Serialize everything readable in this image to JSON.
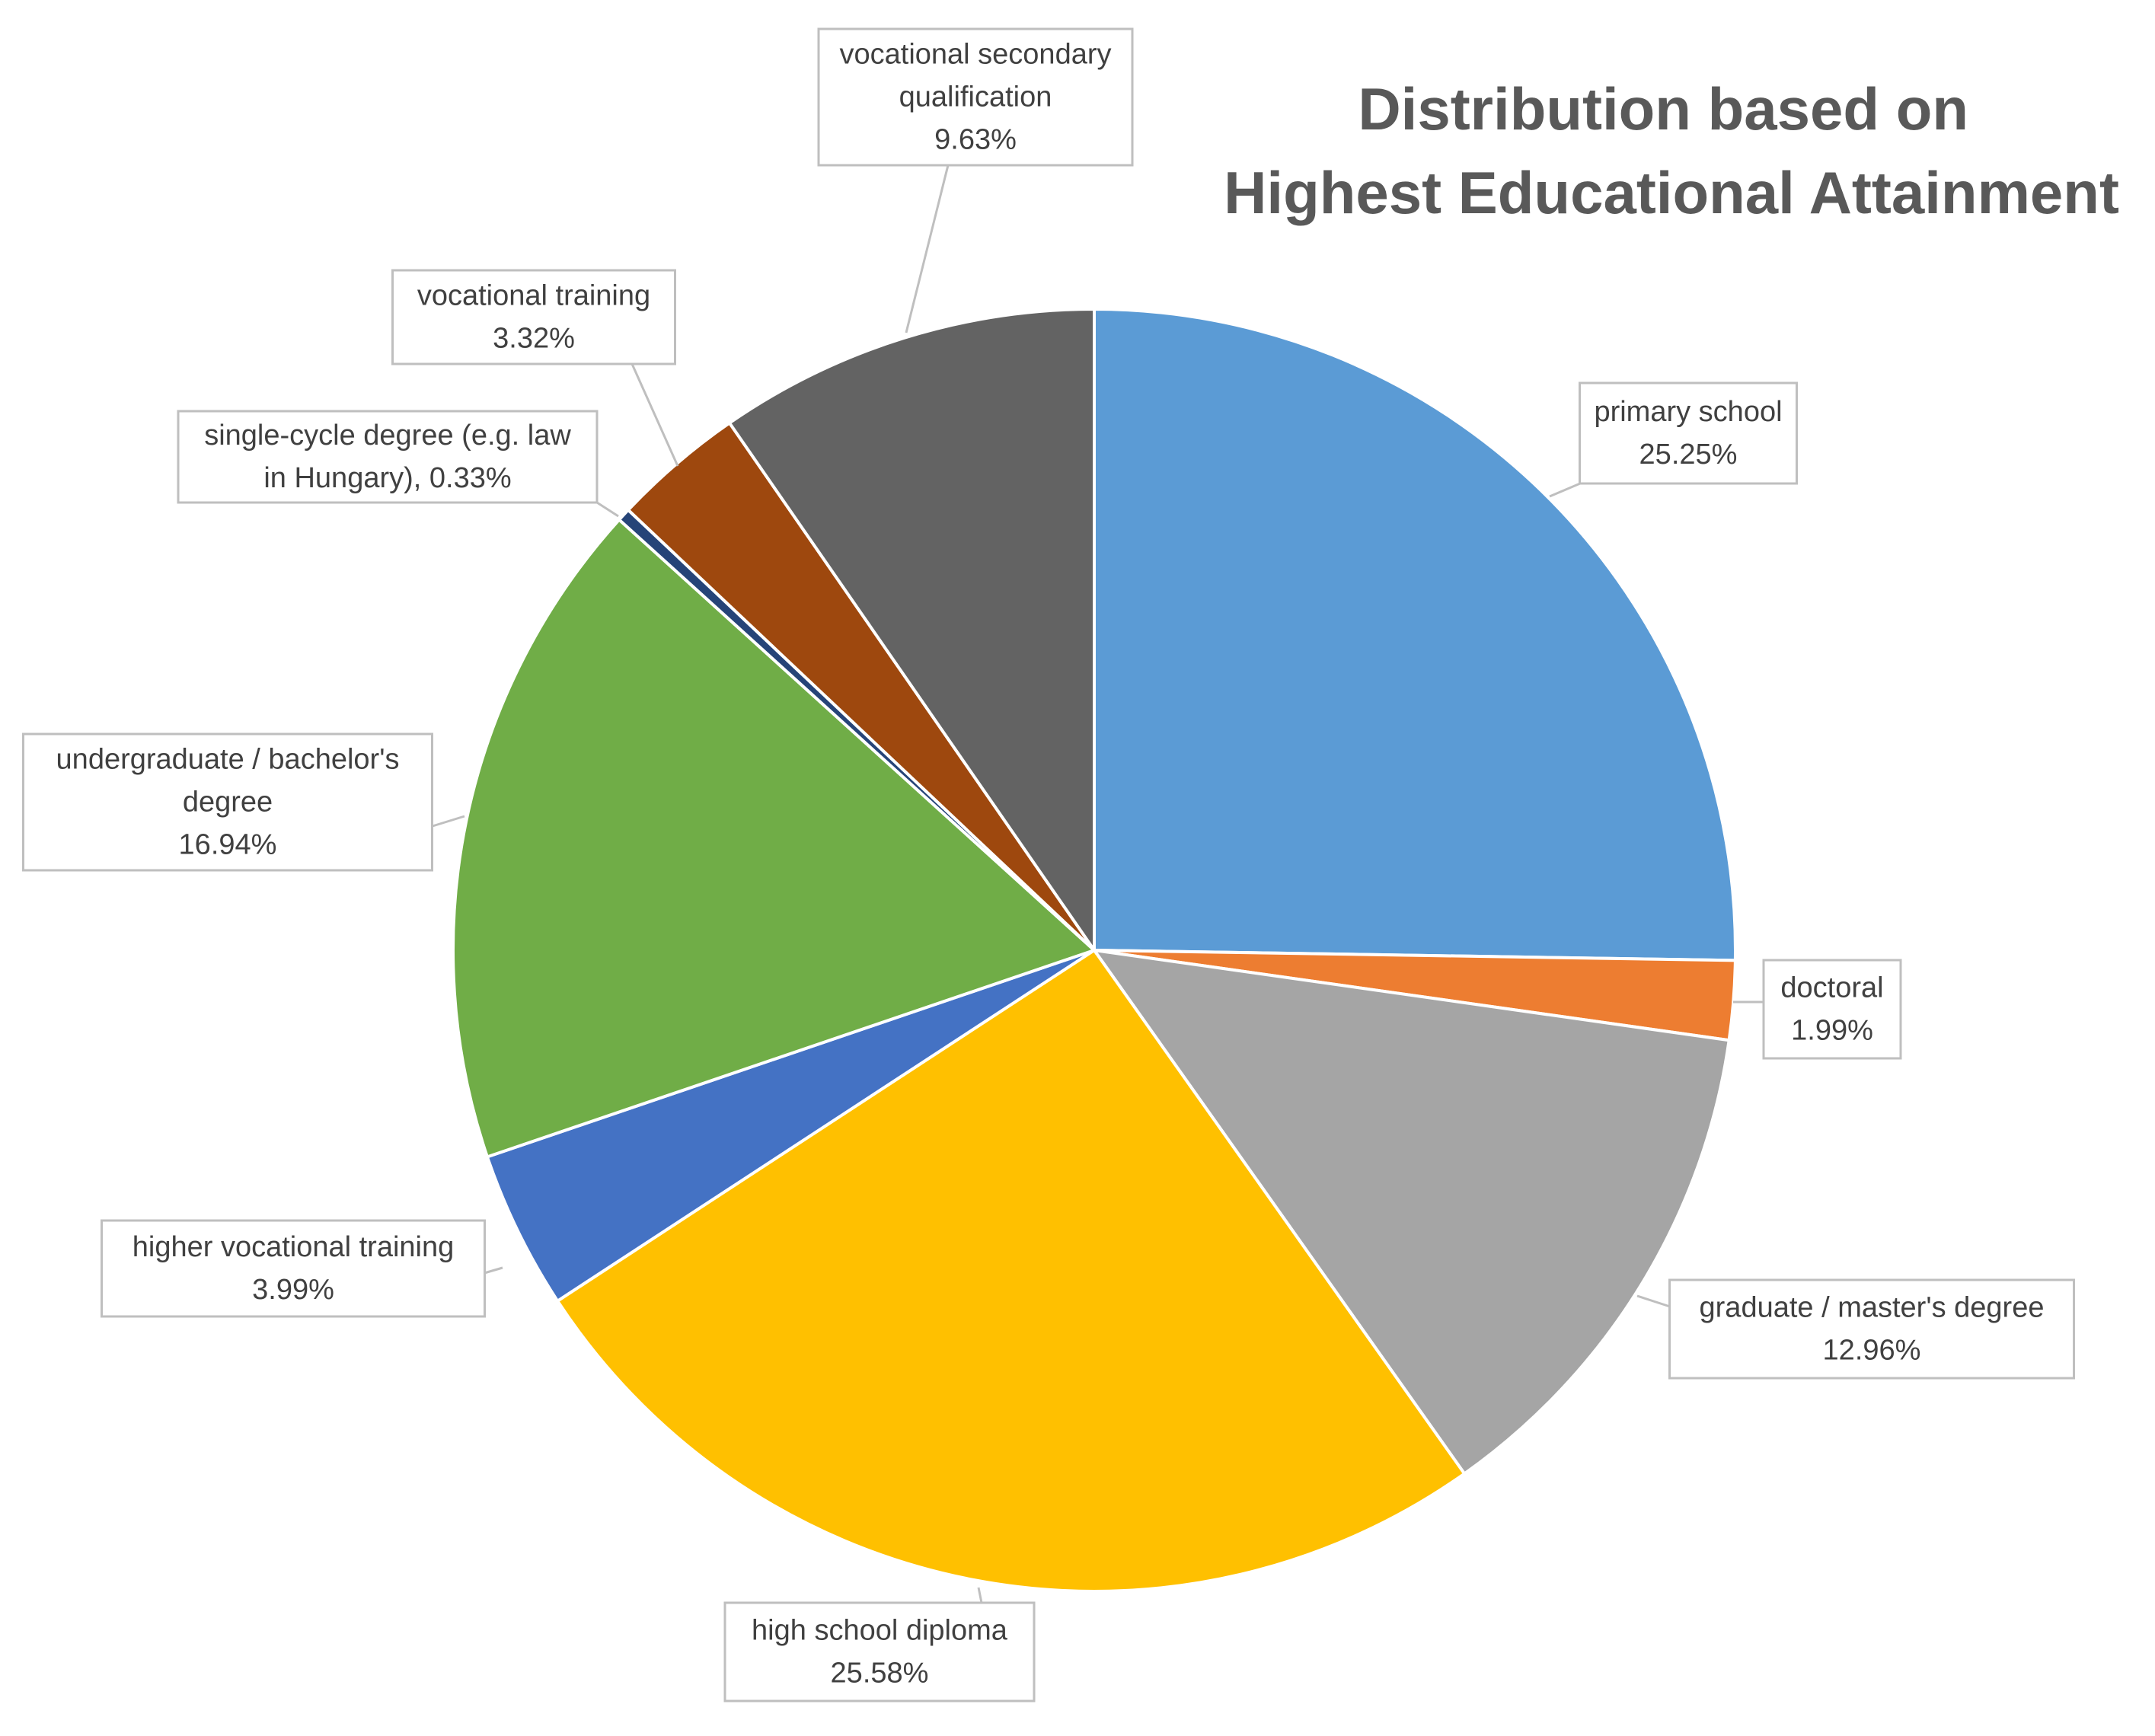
{
  "chart_data": {
    "type": "pie",
    "title": "Distribution based on Highest Educational Attainment",
    "title_lines": [
      "Distribution based on",
      "Highest Educational Attainment"
    ],
    "start_angle_deg": 0,
    "direction": "clockwise",
    "slices": [
      {
        "label": "primary school",
        "label_lines": [
          "primary school",
          "25.25%"
        ],
        "value": 25.25,
        "display": "25.25%",
        "color": "#5B9BD5"
      },
      {
        "label": "doctoral",
        "label_lines": [
          "doctoral",
          "1.99%"
        ],
        "value": 1.99,
        "display": "1.99%",
        "color": "#ED7D31"
      },
      {
        "label": "graduate / master's degree",
        "label_lines": [
          "graduate / master's degree",
          "12.96%"
        ],
        "value": 12.96,
        "display": "12.96%",
        "color": "#A5A5A5"
      },
      {
        "label": "high school diploma",
        "label_lines": [
          "high school diploma",
          "25.58%"
        ],
        "value": 25.58,
        "display": "25.58%",
        "color": "#FFC000"
      },
      {
        "label": "higher vocational training",
        "label_lines": [
          "higher vocational training",
          "3.99%"
        ],
        "value": 3.99,
        "display": "3.99%",
        "color": "#4472C4"
      },
      {
        "label": "undergraduate / bachelor's degree",
        "label_lines": [
          "undergraduate / bachelor's",
          "degree",
          "16.94%"
        ],
        "value": 16.94,
        "display": "16.94%",
        "color": "#70AD47"
      },
      {
        "label": "single-cycle degree (e.g. law in Hungary)",
        "label_lines": [
          "single-cycle degree (e.g. law",
          "in Hungary), 0.33%"
        ],
        "value": 0.33,
        "display": "0.33%",
        "color": "#264478"
      },
      {
        "label": "vocational training",
        "label_lines": [
          "vocational training",
          "3.32%"
        ],
        "value": 3.32,
        "display": "3.32%",
        "color": "#9E480E"
      },
      {
        "label": "vocational secondary qualification",
        "label_lines": [
          "vocational secondary",
          "qualification",
          "9.63%"
        ],
        "value": 9.63,
        "display": "9.63%",
        "color": "#636363"
      }
    ]
  }
}
